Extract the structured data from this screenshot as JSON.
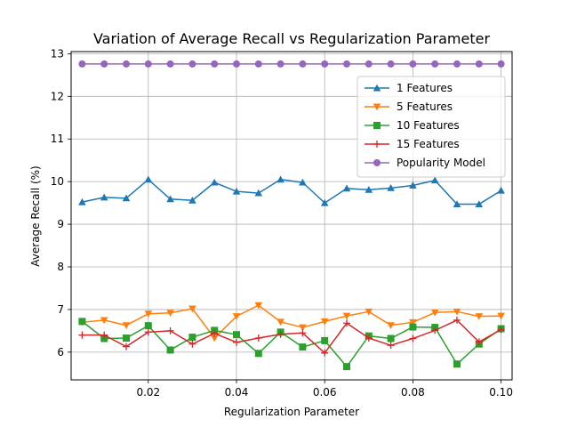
{
  "chart_data": {
    "type": "line",
    "title": "Variation of Average Recall vs Regularization Parameter",
    "xlabel": "Regularization Parameter",
    "ylabel": "Average Recall (%)",
    "xlim": [
      0.0025,
      0.1025
    ],
    "ylim": [
      5.35,
      13.05
    ],
    "grid": true,
    "legend_position": "upper-right",
    "x_ticks": [
      0.02,
      0.04,
      0.06,
      0.08,
      0.1
    ],
    "x_tick_labels": [
      "0.02",
      "0.04",
      "0.06",
      "0.08",
      "0.10"
    ],
    "y_ticks": [
      6,
      7,
      8,
      9,
      10,
      11,
      12,
      13
    ],
    "y_tick_labels": [
      "6",
      "7",
      "8",
      "9",
      "10",
      "11",
      "12",
      "13"
    ],
    "x": [
      0.005,
      0.01,
      0.015,
      0.02,
      0.025,
      0.03,
      0.035,
      0.04,
      0.045,
      0.05,
      0.055,
      0.06,
      0.065,
      0.07,
      0.075,
      0.08,
      0.085,
      0.09,
      0.095,
      0.1
    ],
    "series": [
      {
        "name": "1 Features",
        "color": "#1f77b4",
        "marker": "triangle-up",
        "values": [
          9.52,
          9.63,
          9.61,
          10.05,
          9.59,
          9.56,
          9.98,
          9.77,
          9.73,
          10.05,
          9.98,
          9.5,
          9.84,
          9.81,
          9.85,
          9.91,
          10.03,
          9.47,
          9.47,
          9.79
        ]
      },
      {
        "name": "5 Features",
        "color": "#ff7f0e",
        "marker": "triangle-down",
        "values": [
          6.7,
          6.75,
          6.63,
          6.9,
          6.92,
          7.02,
          6.33,
          6.84,
          7.1,
          6.71,
          6.58,
          6.72,
          6.85,
          6.95,
          6.63,
          6.7,
          6.93,
          6.95,
          6.84,
          6.85
        ]
      },
      {
        "name": "10 Features",
        "color": "#2ca02c",
        "marker": "square",
        "values": [
          6.72,
          6.32,
          6.33,
          6.62,
          6.05,
          6.35,
          6.51,
          6.41,
          5.97,
          6.47,
          6.12,
          6.27,
          5.66,
          6.38,
          6.32,
          6.59,
          6.58,
          5.72,
          6.19,
          6.55
        ]
      },
      {
        "name": "15 Features",
        "color": "#d62728",
        "marker": "plus",
        "values": [
          6.4,
          6.4,
          6.13,
          6.47,
          6.5,
          6.19,
          6.44,
          6.23,
          6.33,
          6.42,
          6.45,
          5.98,
          6.68,
          6.33,
          6.16,
          6.32,
          6.51,
          6.75,
          6.24,
          6.53
        ]
      },
      {
        "name": "Popularity Model",
        "color": "#9467bd",
        "marker": "circle",
        "values": [
          12.76,
          12.76,
          12.76,
          12.76,
          12.76,
          12.76,
          12.76,
          12.76,
          12.76,
          12.76,
          12.76,
          12.76,
          12.76,
          12.76,
          12.76,
          12.76,
          12.76,
          12.76,
          12.76,
          12.76
        ]
      }
    ]
  }
}
